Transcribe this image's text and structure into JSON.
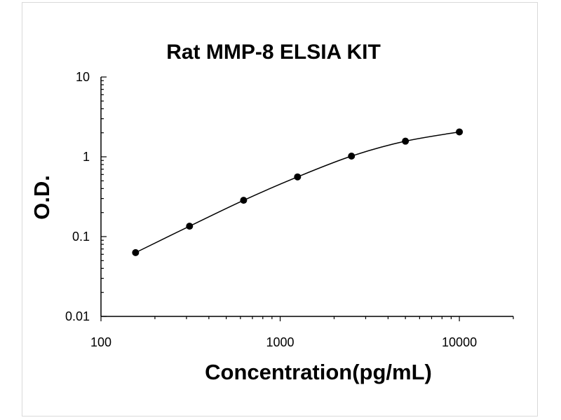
{
  "chart_data": {
    "type": "scatter",
    "title": "Rat MMP-8 ELSIA KIT",
    "xlabel": "Concentration(pg/mL)",
    "ylabel": "O.D.",
    "x_scale": "log",
    "y_scale": "log",
    "xlim": [
      100,
      20000
    ],
    "ylim": [
      0.01,
      10
    ],
    "x_ticks": [
      "100",
      "1000",
      "10000"
    ],
    "y_ticks": [
      "0.01",
      "0.1",
      "1",
      "10"
    ],
    "grid": false,
    "legend": "none",
    "series": [
      {
        "x": [
          156,
          312,
          625,
          1250,
          2500,
          5000,
          10000
        ],
        "y": [
          0.063,
          0.135,
          0.285,
          0.56,
          1.02,
          1.57,
          2.05
        ],
        "fit_curve": true
      }
    ],
    "colors": {
      "marker": "#000000",
      "curve": "#000000",
      "axis": "#000000"
    }
  }
}
